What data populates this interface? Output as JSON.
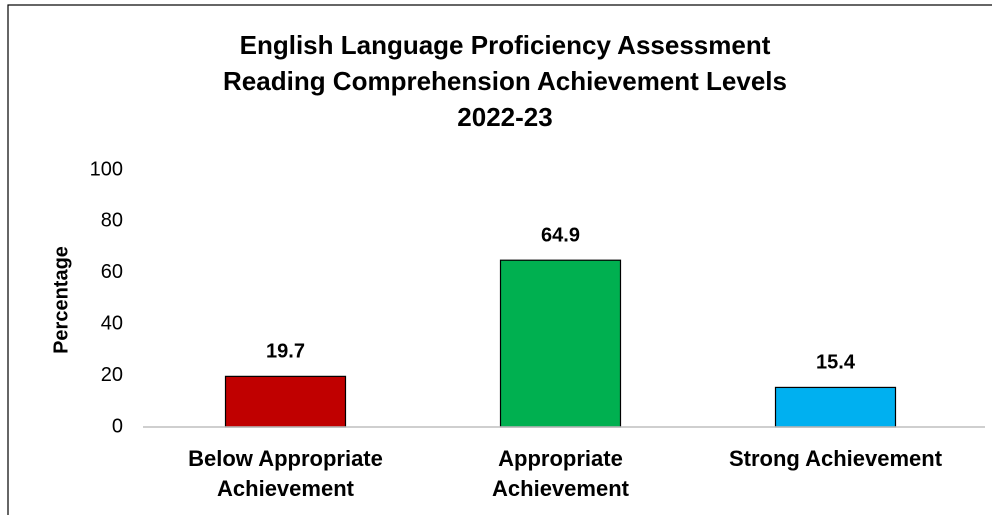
{
  "chart_data": {
    "type": "bar",
    "title": [
      "English Language Proficiency Assessment",
      "Reading Comprehension Achievement Levels",
      "2022-23"
    ],
    "y_label": "Percentage",
    "categories": [
      "Below Appropriate Achievement",
      "Appropriate Achievement",
      "Strong Achievement"
    ],
    "values": [
      19.7,
      64.9,
      15.4
    ],
    "colors": [
      "#c00000",
      "#00b050",
      "#00b0f0"
    ],
    "ylim": [
      0,
      100
    ],
    "yticks": [
      0,
      20,
      40,
      60,
      80,
      100
    ],
    "grid": false
  }
}
